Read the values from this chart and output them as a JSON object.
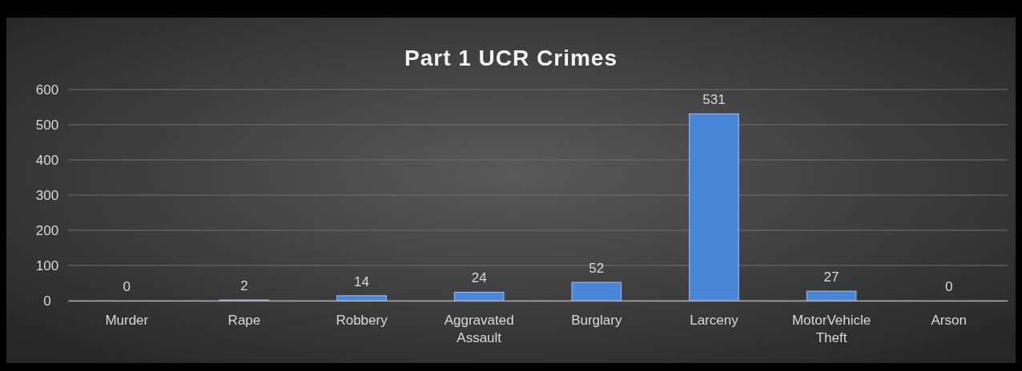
{
  "chart_data": {
    "type": "bar",
    "title": "Part 1 UCR Crimes",
    "categories": [
      "Murder",
      "Rape",
      "Robbery",
      "Aggravated Assault",
      "Burglary",
      "Larceny",
      "MotorVehicle Theft",
      "Arson"
    ],
    "values": [
      0,
      2,
      14,
      24,
      52,
      531,
      27,
      0
    ],
    "color": "#4a86d8",
    "ylim": [
      0,
      600
    ],
    "yticks": [
      0,
      100,
      200,
      300,
      400,
      500,
      600
    ],
    "grid": "y",
    "data_labels": true
  }
}
